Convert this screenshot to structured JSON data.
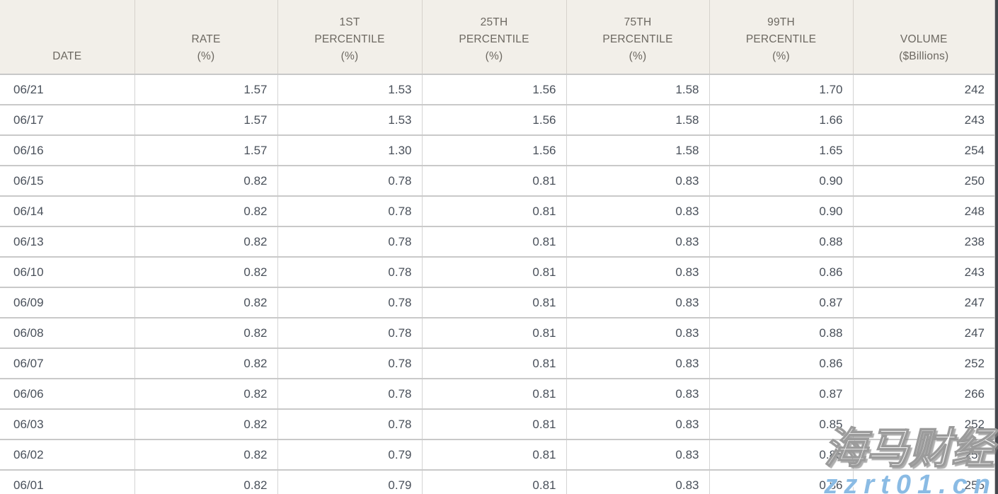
{
  "chart_data": {
    "type": "table",
    "title": "",
    "columns": [
      "DATE",
      "RATE (%)",
      "1ST PERCENTILE (%)",
      "25TH PERCENTILE (%)",
      "75TH PERCENTILE (%)",
      "99TH PERCENTILE (%)",
      "VOLUME ($Billions)"
    ],
    "rows": [
      [
        "06/21",
        "1.57",
        "1.53",
        "1.56",
        "1.58",
        "1.70",
        "242"
      ],
      [
        "06/17",
        "1.57",
        "1.53",
        "1.56",
        "1.58",
        "1.66",
        "243"
      ],
      [
        "06/16",
        "1.57",
        "1.30",
        "1.56",
        "1.58",
        "1.65",
        "254"
      ],
      [
        "06/15",
        "0.82",
        "0.78",
        "0.81",
        "0.83",
        "0.90",
        "250"
      ],
      [
        "06/14",
        "0.82",
        "0.78",
        "0.81",
        "0.83",
        "0.90",
        "248"
      ],
      [
        "06/13",
        "0.82",
        "0.78",
        "0.81",
        "0.83",
        "0.88",
        "238"
      ],
      [
        "06/10",
        "0.82",
        "0.78",
        "0.81",
        "0.83",
        "0.86",
        "243"
      ],
      [
        "06/09",
        "0.82",
        "0.78",
        "0.81",
        "0.83",
        "0.87",
        "247"
      ],
      [
        "06/08",
        "0.82",
        "0.78",
        "0.81",
        "0.83",
        "0.88",
        "247"
      ],
      [
        "06/07",
        "0.82",
        "0.78",
        "0.81",
        "0.83",
        "0.86",
        "252"
      ],
      [
        "06/06",
        "0.82",
        "0.78",
        "0.81",
        "0.83",
        "0.87",
        "266"
      ],
      [
        "06/03",
        "0.82",
        "0.78",
        "0.81",
        "0.83",
        "0.85",
        "252"
      ],
      [
        "06/02",
        "0.82",
        "0.79",
        "0.81",
        "0.83",
        "0.85",
        "256"
      ],
      [
        "06/01",
        "0.82",
        "0.79",
        "0.81",
        "0.83",
        "0.86",
        "255"
      ]
    ]
  },
  "table": {
    "header_columns": [
      {
        "id": "date",
        "lines": [
          "DATE"
        ],
        "align": "left"
      },
      {
        "id": "rate",
        "lines": [
          "RATE",
          "(%)"
        ],
        "align": "right"
      },
      {
        "id": "p01",
        "lines": [
          "1ST",
          "PERCENTILE",
          "(%)"
        ],
        "align": "right"
      },
      {
        "id": "p25",
        "lines": [
          "25TH",
          "PERCENTILE",
          "(%)"
        ],
        "align": "right"
      },
      {
        "id": "p75",
        "lines": [
          "75TH",
          "PERCENTILE",
          "(%)"
        ],
        "align": "right"
      },
      {
        "id": "p99",
        "lines": [
          "99TH",
          "PERCENTILE",
          "(%)"
        ],
        "align": "right"
      },
      {
        "id": "volume",
        "lines": [
          "VOLUME",
          "($Billions)"
        ],
        "align": "right"
      }
    ]
  },
  "watermark": {
    "brand_text": "海马财经",
    "url_text": "zzrt01.cn",
    "brand_color": "#ffffff",
    "url_color": "#8abbe4"
  },
  "colors": {
    "header_background": "#f2efe9",
    "header_text": "#6c6861",
    "body_text": "#49505a",
    "row_border": "#c9c9c9",
    "column_border": "#d4d4d4",
    "scrollbar": "#45484e"
  }
}
